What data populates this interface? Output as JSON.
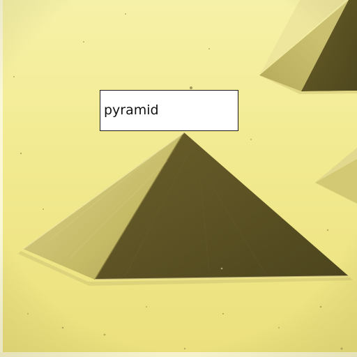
{
  "annotation": {
    "label": "pyramid"
  },
  "palette": {
    "substrate_light": "#f6f1a8",
    "substrate_mid": "#ece37f",
    "substrate_shade": "#cfc461",
    "face_lit": "#c9bf6a",
    "face_lit_edge": "#e6dd92",
    "face_shadow": "#5e5424",
    "face_shadow_dark": "#4f4720",
    "rim_highlight": "#f2eca2",
    "box_fill": "#ffffff",
    "box_border": "#1a1a1a"
  }
}
